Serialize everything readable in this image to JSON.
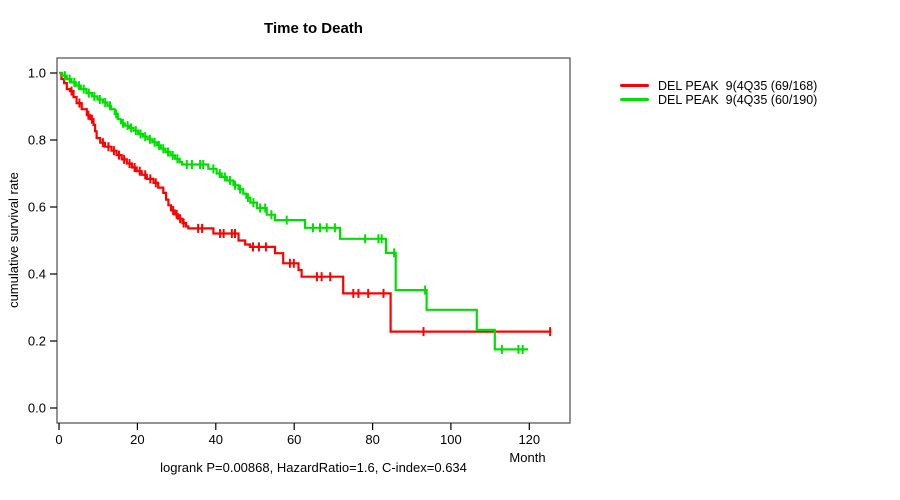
{
  "chart_data": {
    "type": "line",
    "subtype": "kaplan-meier-step-survival",
    "title": "Time to Death",
    "xlabel": "Month",
    "ylabel": "cumulative survival rate",
    "annotation": "logrank P=0.00868, HazardRatio=1.6, C-index=0.634",
    "xlim": [
      0,
      130
    ],
    "ylim": [
      0,
      1.04
    ],
    "x_ticks": [
      0,
      20,
      40,
      60,
      80,
      100,
      120
    ],
    "y_ticks": [
      1.0,
      0.8,
      0.6,
      0.4,
      0.2,
      0.0
    ],
    "y_tick_labels": [
      "1.0",
      "0.8",
      "0.6",
      "0.4",
      "0.2",
      "0.0"
    ],
    "grid": false,
    "legend_position": "right-outside",
    "series": [
      {
        "name": "DEL PEAK  9(4Q35 (69/168)",
        "color": "#ff0000",
        "points": [
          [
            0,
            1.0
          ],
          [
            0.6,
            0.982
          ],
          [
            1.3,
            0.97
          ],
          [
            2.0,
            0.952
          ],
          [
            2.8,
            0.946
          ],
          [
            3.7,
            0.928
          ],
          [
            4.5,
            0.91
          ],
          [
            5.8,
            0.892
          ],
          [
            7.1,
            0.874
          ],
          [
            7.9,
            0.862
          ],
          [
            8.8,
            0.845
          ],
          [
            9.2,
            0.826
          ],
          [
            9.6,
            0.806
          ],
          [
            10.5,
            0.792
          ],
          [
            11.7,
            0.78
          ],
          [
            13.4,
            0.768
          ],
          [
            14.7,
            0.755
          ],
          [
            16.0,
            0.742
          ],
          [
            17.3,
            0.73
          ],
          [
            18.6,
            0.718
          ],
          [
            19.8,
            0.707
          ],
          [
            21.1,
            0.696
          ],
          [
            22.4,
            0.684
          ],
          [
            24.1,
            0.672
          ],
          [
            25.3,
            0.658
          ],
          [
            26.6,
            0.642
          ],
          [
            27.3,
            0.622
          ],
          [
            27.9,
            0.605
          ],
          [
            28.6,
            0.59
          ],
          [
            29.5,
            0.578
          ],
          [
            30.4,
            0.565
          ],
          [
            31.5,
            0.552
          ],
          [
            32.4,
            0.542
          ],
          [
            33.0,
            0.536
          ],
          [
            39.4,
            0.521
          ],
          [
            45.8,
            0.5
          ],
          [
            47.5,
            0.488
          ],
          [
            48.7,
            0.481
          ],
          [
            55.1,
            0.462
          ],
          [
            57.2,
            0.432
          ],
          [
            61.1,
            0.412
          ],
          [
            61.9,
            0.392
          ],
          [
            72.5,
            0.342
          ],
          [
            84.6,
            0.228
          ]
        ],
        "end_month": 125.6,
        "censor_months": [
          3.2,
          5.2,
          7.5,
          8.4,
          11.2,
          12.6,
          14.0,
          15.3,
          16.6,
          18.0,
          19.3,
          20.6,
          22.0,
          23.3,
          24.7,
          29.1,
          30.0,
          30.9,
          31.8,
          35.5,
          36.5,
          41.1,
          42.0,
          44.1,
          44.9,
          49.5,
          51.0,
          52.8,
          58.9,
          59.9,
          65.8,
          67.0,
          69.2,
          75.1,
          76.4,
          78.9,
          82.8,
          93.0,
          125.3
        ]
      },
      {
        "name": "DEL PEAK  9(4Q35 (60/190)",
        "color": "#00e000",
        "points": [
          [
            0,
            1.0
          ],
          [
            0.8,
            0.992
          ],
          [
            2.0,
            0.982
          ],
          [
            3.2,
            0.972
          ],
          [
            4.4,
            0.962
          ],
          [
            5.6,
            0.952
          ],
          [
            7.0,
            0.94
          ],
          [
            8.4,
            0.93
          ],
          [
            9.8,
            0.921
          ],
          [
            11.2,
            0.912
          ],
          [
            12.4,
            0.902
          ],
          [
            13.3,
            0.892
          ],
          [
            14.2,
            0.878
          ],
          [
            15.0,
            0.862
          ],
          [
            15.8,
            0.85
          ],
          [
            16.8,
            0.843
          ],
          [
            18.0,
            0.836
          ],
          [
            19.0,
            0.828
          ],
          [
            20.2,
            0.818
          ],
          [
            21.4,
            0.81
          ],
          [
            22.6,
            0.802
          ],
          [
            23.8,
            0.793
          ],
          [
            25.0,
            0.784
          ],
          [
            26.0,
            0.774
          ],
          [
            27.2,
            0.764
          ],
          [
            28.4,
            0.754
          ],
          [
            29.6,
            0.744
          ],
          [
            30.8,
            0.734
          ],
          [
            31.4,
            0.727
          ],
          [
            38.1,
            0.714
          ],
          [
            40.2,
            0.7
          ],
          [
            41.5,
            0.69
          ],
          [
            42.8,
            0.679
          ],
          [
            44.5,
            0.665
          ],
          [
            45.8,
            0.653
          ],
          [
            47.0,
            0.64
          ],
          [
            47.8,
            0.628
          ],
          [
            48.8,
            0.613
          ],
          [
            50.5,
            0.597
          ],
          [
            53.0,
            0.577
          ],
          [
            55.1,
            0.561
          ],
          [
            62.8,
            0.538
          ],
          [
            71.7,
            0.505
          ],
          [
            83.4,
            0.463
          ],
          [
            85.9,
            0.352
          ],
          [
            93.8,
            0.293
          ],
          [
            106.6,
            0.233
          ],
          [
            111.2,
            0.175
          ]
        ],
        "end_month": 119.7,
        "censor_months": [
          1.5,
          2.7,
          3.9,
          5.1,
          6.3,
          7.6,
          9.0,
          10.4,
          11.8,
          13.0,
          14.6,
          16.3,
          17.5,
          18.4,
          19.6,
          20.8,
          22.0,
          23.2,
          24.4,
          25.5,
          26.6,
          27.8,
          29.0,
          30.2,
          32.6,
          33.9,
          36.0,
          36.8,
          39.4,
          41.0,
          42.3,
          43.6,
          44.9,
          46.2,
          48.2,
          49.6,
          51.3,
          52.6,
          54.2,
          58.1,
          64.8,
          66.6,
          68.3,
          70.4,
          78.1,
          81.5,
          82.3,
          85.5,
          93.4,
          113.0,
          117.2,
          118.3
        ]
      }
    ]
  }
}
